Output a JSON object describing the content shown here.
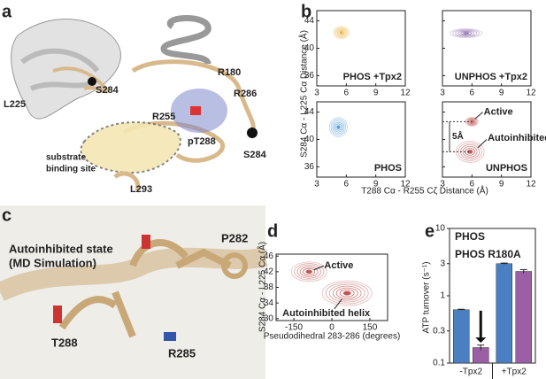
{
  "panel_letters": [
    "a",
    "b",
    "c",
    "d",
    "e"
  ],
  "panel_a": {
    "labels": [
      "L225",
      "S284",
      "R180",
      "R286",
      "R255",
      "pT288",
      "S284",
      "L293"
    ],
    "annotation": [
      "substrate",
      "binding site"
    ]
  },
  "panel_c": {
    "title": [
      "Autoinhibited state",
      "(MD Simulation)"
    ],
    "labels": [
      "P282",
      "T288",
      "R285"
    ]
  },
  "chart_data": [
    {
      "type": "contour",
      "xlabel": "T288 Cα - R255 Cζ Distance (Å)",
      "ylabel": "S284 Cα - L225 Cα Distance (Å)",
      "xlim": [
        3,
        12
      ],
      "ylim": [
        34.5,
        45.5
      ],
      "xticks": [
        3,
        6,
        9,
        12
      ],
      "yticks": [
        36,
        40,
        44
      ],
      "panels": [
        {
          "name": "PHOS +Tpx2",
          "color": "#e8a92a"
        },
        {
          "name": "UNPHOS +Tpx2",
          "color": "#8b6bab"
        },
        {
          "name": "PHOS",
          "color": "#3f8fd2"
        },
        {
          "name": "UNPHOS",
          "color": "#b83b3b"
        }
      ],
      "annotations": [
        "Active",
        "Autoinhibited",
        "5Å"
      ]
    },
    {
      "type": "contour",
      "xlabel": "Pseudodihedral 283-286 (degrees)",
      "ylabel": "S284 Cα - L225 Cα (Å)",
      "xlim": [
        -220,
        220
      ],
      "ylim": [
        29.5,
        46.5
      ],
      "xticks": [
        -150,
        0,
        150
      ],
      "yticks": [
        30,
        34,
        38,
        42,
        46
      ],
      "color": "#b83b3b",
      "annotations": [
        "Active",
        "Autoinhibited helix"
      ]
    },
    {
      "type": "bar",
      "ylabel": "ATP turnover (s⁻¹)",
      "log": true,
      "ylim": [
        0.1,
        10
      ],
      "yticks": [
        0.1,
        0.3,
        1,
        3,
        10
      ],
      "categories": [
        "-Tpx2",
        "+Tpx2"
      ],
      "series": [
        {
          "name": "PHOS",
          "color": "#4a7fc1",
          "values": [
            0.62,
            3.0
          ],
          "errors": [
            0.01,
            0.06
          ]
        },
        {
          "name": "PHOS R180A",
          "color": "#9b5fa5",
          "values": [
            0.17,
            2.3
          ],
          "errors": [
            0.015,
            0.15
          ]
        }
      ]
    }
  ]
}
